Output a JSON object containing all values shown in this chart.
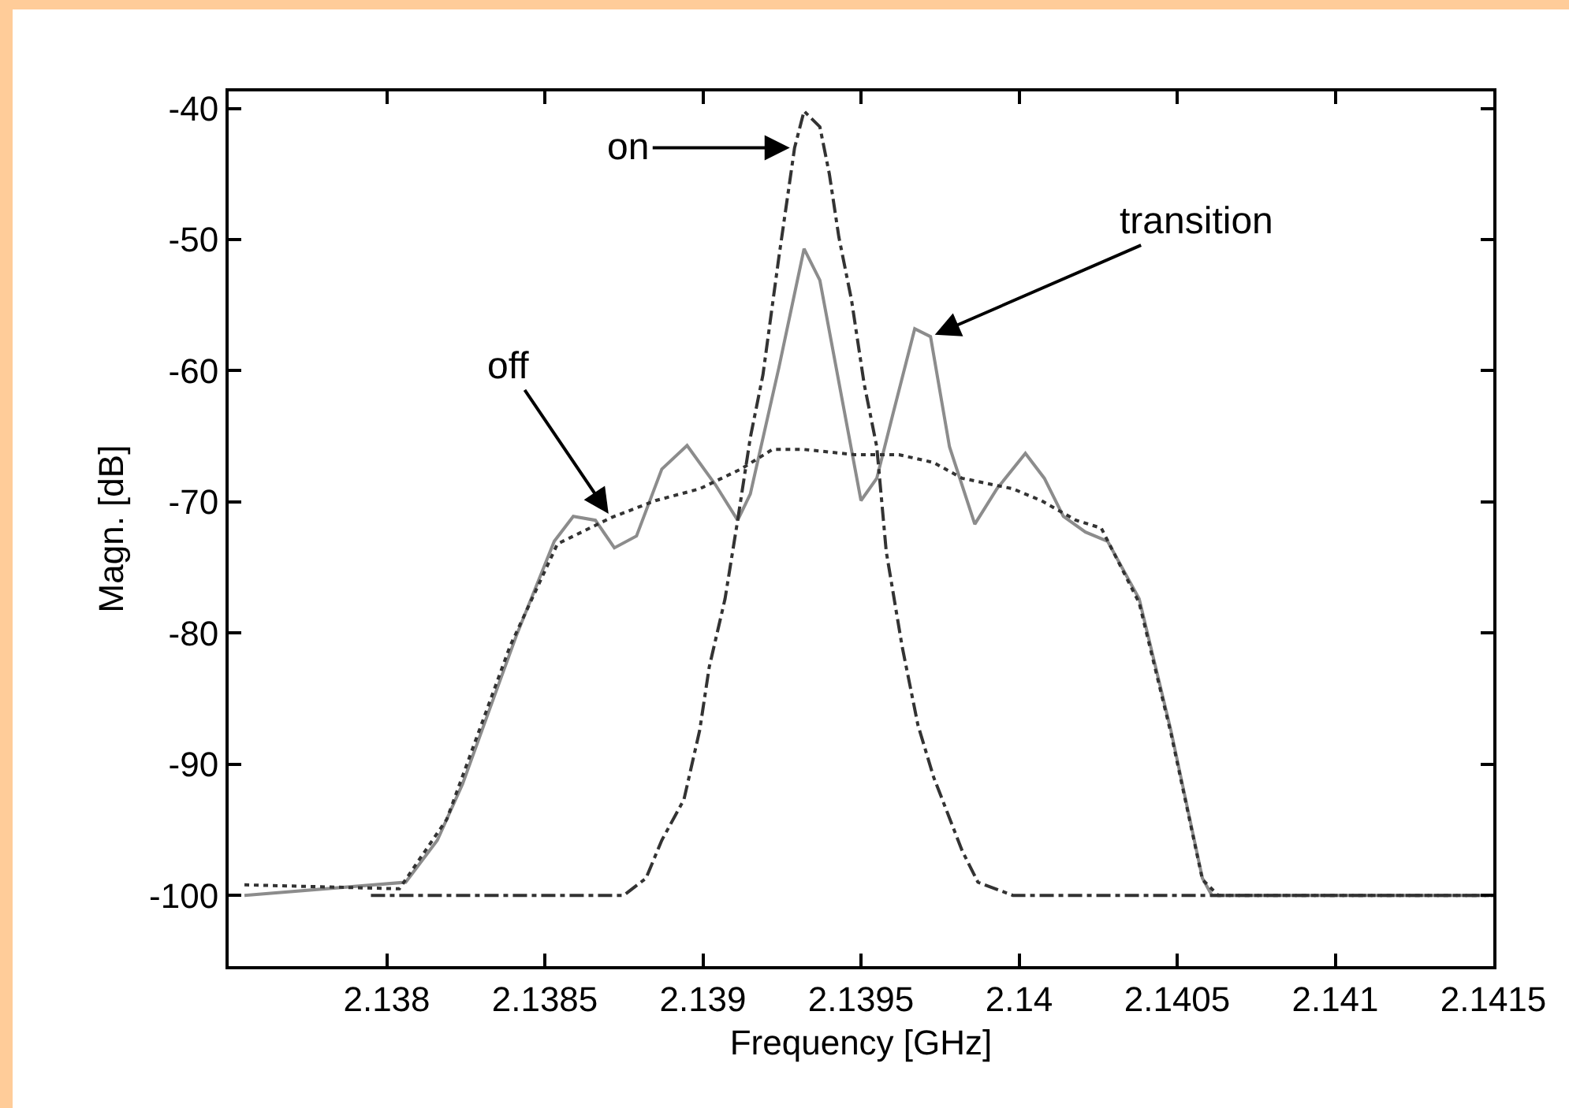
{
  "chart_data": {
    "type": "line",
    "xlabel": "Frequency [GHz]",
    "ylabel": "Magn. [dB]",
    "xlim": [
      2.1375,
      2.1415
    ],
    "xticks": [
      2.138,
      2.1385,
      2.139,
      2.1395,
      2.14,
      2.1405,
      2.141,
      2.1415
    ],
    "ylim": [
      -105.4,
      -38.7
    ],
    "yticks": [
      -100,
      -90,
      -80,
      -70,
      -60,
      -50,
      -40
    ],
    "marker": "none",
    "series": [
      {
        "color": "#8c8c8c",
        "line_style": "solid",
        "x": [
          2.13755,
          2.13806,
          2.13816,
          2.13824,
          2.13833,
          2.13841,
          2.13849,
          2.13853,
          2.13859,
          2.13866,
          2.13872,
          2.13879,
          2.13887,
          2.13895,
          2.13904,
          2.13911,
          2.13915,
          2.13924,
          2.13932,
          2.13937,
          2.1395,
          2.13955,
          2.1396,
          2.13967,
          2.13972,
          2.13978,
          2.13986,
          2.13993,
          2.14002,
          2.14008,
          2.14014,
          2.14021,
          2.14028,
          2.14038,
          2.14048,
          2.14058,
          2.14061,
          2.1415
        ],
        "values": [
          -100,
          -99,
          -95.8,
          -91.5,
          -85.5,
          -80.2,
          -75.4,
          -73,
          -71.1,
          -71.4,
          -73.5,
          -72.6,
          -67.5,
          -65.7,
          -68.7,
          -71.4,
          -69.4,
          -59.8,
          -50.7,
          -53.1,
          -69.9,
          -68.2,
          -63.4,
          -56.8,
          -57.4,
          -65.8,
          -71.7,
          -69,
          -66.3,
          -68.2,
          -71.1,
          -72.3,
          -73,
          -77.4,
          -87.4,
          -98.7,
          -100,
          -100
        ]
      },
      {
        "color": "#333333",
        "line_style": "dotted",
        "x": [
          2.13755,
          2.13804,
          2.13819,
          2.13839,
          2.13854,
          2.13871,
          2.13885,
          2.13899,
          2.13912,
          2.13922,
          2.13932,
          2.13948,
          2.13962,
          2.13973,
          2.13982,
          2.13998,
          2.14007,
          2.14018,
          2.14026,
          2.14038,
          2.14048,
          2.14058,
          2.14063,
          2.1415
        ],
        "values": [
          -99.2,
          -99.5,
          -94.2,
          -81,
          -73.2,
          -71.2,
          -69.9,
          -69,
          -67.5,
          -66,
          -66,
          -66.4,
          -66.4,
          -67,
          -68.2,
          -69,
          -69.9,
          -71.4,
          -72,
          -77.7,
          -87.6,
          -98.8,
          -100,
          -100
        ]
      },
      {
        "color": "#333333",
        "line_style": "dashdot",
        "x": [
          2.13795,
          2.13875,
          2.13882,
          2.13887,
          2.13894,
          2.13899,
          2.13902,
          2.13907,
          2.13911,
          2.13915,
          2.13919,
          2.13924,
          2.13929,
          2.13932,
          2.13937,
          2.1394,
          2.13943,
          2.13947,
          2.13951,
          2.13955,
          2.13958,
          2.13963,
          2.13968,
          2.13973,
          2.13982,
          2.13987,
          2.13998,
          2.1415
        ],
        "values": [
          -100,
          -100,
          -98.7,
          -95.8,
          -92.7,
          -87.4,
          -82.6,
          -77.4,
          -71.4,
          -65.1,
          -60.3,
          -51.4,
          -43,
          -40.2,
          -41.4,
          -45,
          -49.8,
          -54.6,
          -61,
          -65.8,
          -73.8,
          -81,
          -87,
          -91,
          -96.6,
          -99,
          -100,
          -100
        ]
      }
    ],
    "annotations": [
      {
        "text": "on",
        "x": 2.13929,
        "y": -43
      },
      {
        "text": "off",
        "x": 2.13871,
        "y": -71.2
      },
      {
        "text": "transition",
        "x": 2.13972,
        "y": -57.4
      }
    ]
  }
}
